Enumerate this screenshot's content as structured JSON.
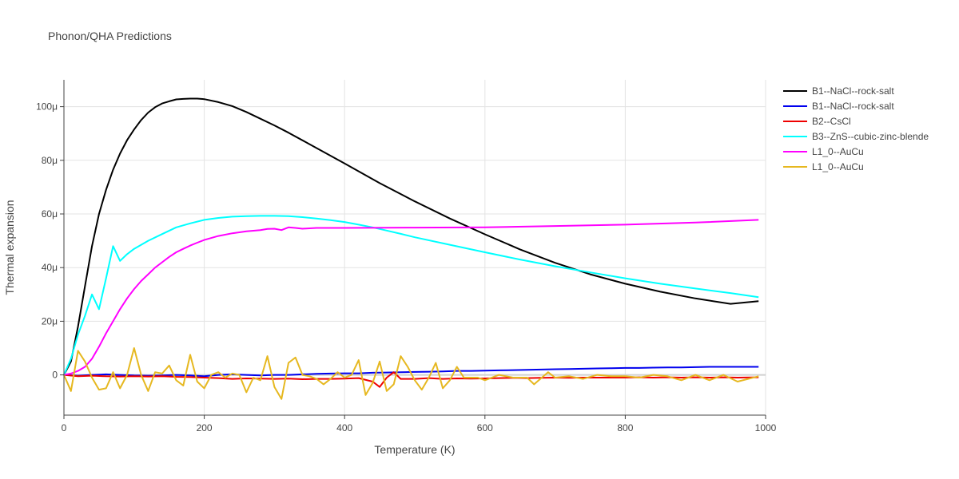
{
  "chart_data": {
    "type": "line",
    "title": "Phonon/QHA Predictions",
    "xlabel": "Temperature (K)",
    "ylabel": "Thermal expansion",
    "xlim": [
      0,
      1000
    ],
    "ylim": [
      -1.5e-05,
      0.00011
    ],
    "x_ticks": [
      0,
      200,
      400,
      600,
      800,
      1000
    ],
    "x_tick_labels": [
      "0",
      "200",
      "400",
      "600",
      "800",
      "1000"
    ],
    "y_ticks": [
      0,
      2e-05,
      4e-05,
      6e-05,
      8e-05,
      0.0001
    ],
    "y_tick_labels": [
      "0",
      "20μ",
      "40μ",
      "60μ",
      "80μ",
      "100μ"
    ],
    "grid": true,
    "legend_position": "right",
    "series": [
      {
        "name": "B1--NaCl--rock-salt",
        "color": "#000000",
        "x": [
          0,
          10,
          20,
          30,
          40,
          50,
          60,
          70,
          80,
          90,
          100,
          110,
          120,
          130,
          140,
          150,
          160,
          170,
          180,
          190,
          200,
          220,
          240,
          260,
          280,
          300,
          320,
          350,
          400,
          450,
          500,
          550,
          600,
          650,
          700,
          750,
          800,
          850,
          900,
          950,
          990
        ],
        "y": [
          0,
          5e-06,
          1.8e-05,
          3.3e-05,
          4.8e-05,
          6e-05,
          6.9e-05,
          7.65e-05,
          8.25e-05,
          8.75e-05,
          9.15e-05,
          9.5e-05,
          9.78e-05,
          9.98e-05,
          0.0001012,
          0.000102,
          0.0001027,
          0.0001029,
          0.000103,
          0.000103,
          0.0001028,
          0.0001017,
          0.0001002,
          9.8e-05,
          9.55e-05,
          9.3e-05,
          9.03e-05,
          8.6e-05,
          7.88e-05,
          7.15e-05,
          6.47e-05,
          5.83e-05,
          5.24e-05,
          4.68e-05,
          4.18e-05,
          3.75e-05,
          3.4e-05,
          3.1e-05,
          2.85e-05,
          2.65e-05,
          2.75e-05
        ]
      },
      {
        "name": "B1--NaCl--rock-salt",
        "color": "#0000ee",
        "x": [
          0,
          20,
          40,
          60,
          80,
          100,
          120,
          140,
          160,
          180,
          200,
          220,
          240,
          260,
          280,
          300,
          320,
          340,
          360,
          380,
          400,
          420,
          440,
          460,
          480,
          500,
          520,
          540,
          560,
          580,
          600,
          620,
          640,
          660,
          680,
          700,
          720,
          740,
          760,
          780,
          800,
          820,
          840,
          860,
          880,
          900,
          920,
          940,
          960,
          990
        ],
        "y": [
          0,
          -3e-07,
          0,
          2e-07,
          0,
          -2e-07,
          -3e-07,
          -2e-07,
          0,
          -2e-07,
          -5e-07,
          0,
          2e-07,
          0,
          -2e-07,
          0,
          0,
          2e-07,
          4e-07,
          5e-07,
          6e-07,
          6e-07,
          8e-07,
          9e-07,
          1e-06,
          1.1e-06,
          1.2e-06,
          1.3e-06,
          1.5e-06,
          1.5e-06,
          1.6e-06,
          1.7e-06,
          1.8e-06,
          1.9e-06,
          2e-06,
          2.1e-06,
          2.2e-06,
          2.3e-06,
          2.4e-06,
          2.5e-06,
          2.6e-06,
          2.6e-06,
          2.7e-06,
          2.8e-06,
          2.8e-06,
          2.9e-06,
          3e-06,
          3e-06,
          3e-06,
          3e-06
        ]
      },
      {
        "name": "B2--CsCl",
        "color": "#ee0000",
        "x": [
          0,
          20,
          40,
          60,
          80,
          100,
          120,
          140,
          160,
          180,
          200,
          220,
          240,
          260,
          280,
          300,
          320,
          340,
          360,
          380,
          400,
          420,
          440,
          450,
          460,
          470,
          480,
          500,
          520,
          540,
          560,
          580,
          600,
          620,
          640,
          660,
          680,
          700,
          720,
          740,
          760,
          780,
          800,
          820,
          840,
          860,
          880,
          900,
          920,
          940,
          960,
          990
        ],
        "y": [
          0,
          -5e-07,
          -3e-07,
          -5e-07,
          -6e-07,
          -5e-07,
          -6e-07,
          -5e-07,
          -7e-07,
          -8e-07,
          -1e-06,
          -1.2e-06,
          -1.5e-06,
          -1.3e-06,
          -1.4e-06,
          -1.5e-06,
          -1.4e-06,
          -1.6e-06,
          -1.5e-06,
          -1.5e-06,
          -1.4e-06,
          -1.2e-06,
          -2.5e-06,
          -4.5e-06,
          -1e-06,
          1e-06,
          -1.5e-06,
          -1.5e-06,
          -1.2e-06,
          -1.5e-06,
          -1.3e-06,
          -1.4e-06,
          -1.3e-06,
          -1.2e-06,
          -1.1e-06,
          -1.2e-06,
          -1.1e-06,
          -1e-06,
          -1.1e-06,
          -1e-06,
          -1e-06,
          -1e-06,
          -1e-06,
          -9e-07,
          -1e-06,
          -9e-07,
          -1e-06,
          -9e-07,
          -1e-06,
          -9e-07,
          -1e-06,
          -9e-07
        ]
      },
      {
        "name": "B3--ZnS--cubic-zinc-blende",
        "color": "#00ffff",
        "x": [
          0,
          10,
          20,
          30,
          40,
          50,
          60,
          70,
          80,
          90,
          100,
          120,
          140,
          160,
          180,
          200,
          220,
          240,
          260,
          280,
          300,
          320,
          340,
          360,
          380,
          400,
          420,
          440,
          460,
          480,
          500,
          550,
          600,
          650,
          700,
          750,
          800,
          850,
          900,
          950,
          990
        ],
        "y": [
          0,
          6e-06,
          1.5e-05,
          2.2e-05,
          3e-05,
          2.45e-05,
          3.6e-05,
          4.8e-05,
          4.25e-05,
          4.5e-05,
          4.7e-05,
          5e-05,
          5.25e-05,
          5.5e-05,
          5.65e-05,
          5.78e-05,
          5.85e-05,
          5.9e-05,
          5.92e-05,
          5.93e-05,
          5.93e-05,
          5.92e-05,
          5.88e-05,
          5.83e-05,
          5.77e-05,
          5.7e-05,
          5.6e-05,
          5.5e-05,
          5.38e-05,
          5.26e-05,
          5.13e-05,
          4.85e-05,
          4.57e-05,
          4.3e-05,
          4.05e-05,
          3.82e-05,
          3.6e-05,
          3.4e-05,
          3.22e-05,
          3.05e-05,
          2.9e-05
        ]
      },
      {
        "name": "L1_0--AuCu",
        "color": "#ff00ff",
        "x": [
          0,
          10,
          20,
          30,
          40,
          50,
          60,
          70,
          80,
          90,
          100,
          110,
          120,
          130,
          140,
          150,
          160,
          170,
          180,
          190,
          200,
          220,
          240,
          260,
          280,
          290,
          300,
          310,
          320,
          330,
          340,
          360,
          400,
          500,
          600,
          700,
          800,
          900,
          990
        ],
        "y": [
          0,
          5e-07,
          1.5e-06,
          3e-06,
          6e-06,
          1.05e-05,
          1.55e-05,
          2e-05,
          2.45e-05,
          2.85e-05,
          3.2e-05,
          3.5e-05,
          3.75e-05,
          4e-05,
          4.2e-05,
          4.4e-05,
          4.57e-05,
          4.7e-05,
          4.82e-05,
          4.93e-05,
          5.03e-05,
          5.18e-05,
          5.28e-05,
          5.35e-05,
          5.4e-05,
          5.44e-05,
          5.45e-05,
          5.4e-05,
          5.5e-05,
          5.48e-05,
          5.45e-05,
          5.48e-05,
          5.48e-05,
          5.49e-05,
          5.5e-05,
          5.55e-05,
          5.6e-05,
          5.68e-05,
          5.78e-05
        ]
      },
      {
        "name": "L1_0--AuCu",
        "color": "#e6b820",
        "x": [
          0,
          10,
          20,
          30,
          40,
          50,
          60,
          70,
          80,
          90,
          100,
          110,
          120,
          130,
          140,
          150,
          160,
          170,
          180,
          190,
          200,
          210,
          220,
          230,
          240,
          250,
          260,
          270,
          280,
          290,
          300,
          310,
          320,
          330,
          340,
          350,
          360,
          370,
          380,
          390,
          400,
          410,
          420,
          430,
          440,
          450,
          460,
          470,
          480,
          490,
          500,
          510,
          520,
          530,
          540,
          550,
          560,
          570,
          580,
          590,
          600,
          620,
          640,
          660,
          670,
          690,
          700,
          720,
          740,
          760,
          780,
          800,
          820,
          840,
          860,
          880,
          900,
          920,
          940,
          960,
          990
        ],
        "y": [
          0,
          -6e-06,
          9e-06,
          5e-06,
          -1e-06,
          -5.5e-06,
          -5e-06,
          1e-06,
          -5e-06,
          0,
          1e-05,
          0,
          -6e-06,
          1e-06,
          5e-07,
          3.5e-06,
          -2e-06,
          -4e-06,
          7.5e-06,
          -2.5e-06,
          -5e-06,
          0,
          1e-06,
          -1e-06,
          5e-07,
          0,
          -6.5e-06,
          -1e-06,
          -2e-06,
          7e-06,
          -4.5e-06,
          -9e-06,
          4.5e-06,
          6.5e-06,
          0,
          -5e-07,
          -1.5e-06,
          -3.5e-06,
          -1.5e-06,
          1e-06,
          -1e-06,
          0,
          5.5e-06,
          -7.5e-06,
          -3e-06,
          5e-06,
          -6e-06,
          -3.5e-06,
          7e-06,
          3e-06,
          -2e-06,
          -5.5e-06,
          -1e-06,
          4.5e-06,
          -5e-06,
          -2e-06,
          3e-06,
          -1e-06,
          -1e-06,
          -1e-06,
          -2e-06,
          0,
          -1e-06,
          -1e-06,
          -3.5e-06,
          1e-06,
          -1e-06,
          -5e-07,
          -1.5e-06,
          0,
          -5e-07,
          -5e-07,
          -1e-06,
          0,
          -5e-07,
          -2e-06,
          0,
          -2e-06,
          0,
          -2.5e-06,
          -5e-07
        ]
      }
    ]
  }
}
